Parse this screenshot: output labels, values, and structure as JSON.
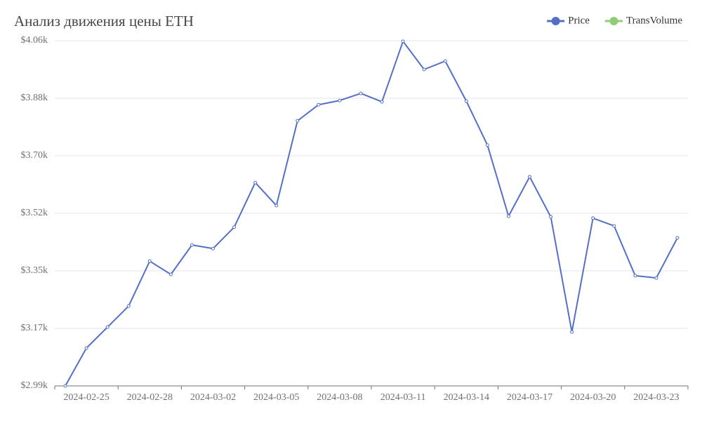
{
  "chart_data": {
    "type": "line",
    "title": "Анализ движения цены ETH",
    "categories": [
      null,
      "2024-02-25",
      null,
      null,
      "2024-02-28",
      null,
      null,
      "2024-03-02",
      null,
      null,
      "2024-03-05",
      null,
      null,
      "2024-03-08",
      null,
      null,
      "2024-03-11",
      null,
      null,
      "2024-03-14",
      null,
      null,
      "2024-03-17",
      null,
      null,
      "2024-03-20",
      null,
      null,
      "2024-03-23",
      null
    ],
    "series": [
      {
        "name": "Price",
        "color": "#5470c6",
        "values": [
          2990,
          3107,
          3172,
          3237,
          3376,
          3335,
          3426,
          3415,
          3481,
          3619,
          3548,
          3810,
          3860,
          3873,
          3895,
          3869,
          4056,
          3969,
          3995,
          3871,
          3735,
          3515,
          3637,
          3513,
          3157,
          3509,
          3485,
          3331,
          3324,
          3448
        ]
      },
      {
        "name": "TransVolume",
        "color": "#91cc75",
        "values": [
          null,
          null,
          null,
          null,
          null,
          null,
          null,
          null,
          null,
          null,
          null,
          null,
          null,
          null,
          null,
          null,
          null,
          null,
          null,
          null,
          null,
          null,
          null,
          null,
          null,
          null,
          null,
          null,
          null,
          null
        ]
      }
    ],
    "ylim": [
      2990,
      4058
    ],
    "yticks": [
      {
        "value": 2990,
        "label": "$2.99k"
      },
      {
        "value": 3168,
        "label": "$3.17k"
      },
      {
        "value": 3346,
        "label": "$3.35k"
      },
      {
        "value": 3524,
        "label": "$3.52k"
      },
      {
        "value": 3702,
        "label": "$3.70k"
      },
      {
        "value": 3880,
        "label": "$3.88k"
      },
      {
        "value": 4058,
        "label": "$4.06k"
      }
    ],
    "grid": true,
    "legend": "top-right"
  }
}
